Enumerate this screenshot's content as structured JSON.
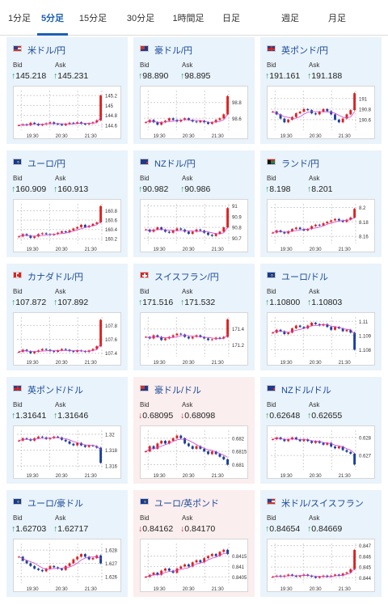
{
  "tabs": [
    {
      "label": "1分足",
      "active": false
    },
    {
      "label": "5分足",
      "active": true
    },
    {
      "label": "15分足",
      "active": false
    },
    {
      "label": "30分足",
      "active": false
    },
    {
      "label": "1時間足",
      "active": false
    },
    {
      "label": "日足",
      "active": false
    },
    {
      "label": "週足",
      "active": false
    },
    {
      "label": "月足",
      "active": false
    }
  ],
  "bid_label": "Bid",
  "ask_label": "Ask",
  "colors": {
    "up": "#1a9a5a",
    "down": "#d93030",
    "candle_up": "#e02020",
    "candle_down": "#1a3fa0",
    "ma": "#d040d0",
    "link": "#1a4a9a",
    "bg_up": "#e9f3fb",
    "bg_down": "#fbeeee"
  },
  "cards": [
    {
      "pair": "米ドル/円",
      "flag": "us",
      "dir": "up",
      "bid": "145.218",
      "ask": "145.231",
      "chart_data": {
        "type": "candlestick",
        "xticks": [
          "19:30",
          "20:30",
          "21:30"
        ],
        "yticks": [
          "144.6",
          "144.8",
          "145",
          "145.2"
        ],
        "ylim": [
          144.5,
          145.3
        ],
        "series": [
          144.6,
          144.62,
          144.6,
          144.65,
          144.63,
          144.6,
          144.62,
          144.64,
          144.66,
          144.63,
          144.62,
          144.6,
          144.63,
          144.65,
          144.64,
          144.66,
          144.63,
          144.62,
          144.64,
          144.66,
          144.7,
          145.2
        ]
      }
    },
    {
      "pair": "豪ドル/円",
      "flag": "au",
      "dir": "up",
      "bid": "98.890",
      "ask": "98.895",
      "chart_data": {
        "type": "candlestick",
        "xticks": [
          "19:30",
          "20:30",
          "21:30"
        ],
        "yticks": [
          "98.6",
          "98.8"
        ],
        "ylim": [
          98.45,
          98.95
        ],
        "series": [
          98.55,
          98.58,
          98.55,
          98.52,
          98.55,
          98.57,
          98.6,
          98.58,
          98.56,
          98.58,
          98.6,
          98.58,
          98.56,
          98.55,
          98.57,
          98.55,
          98.53,
          98.55,
          98.58,
          98.6,
          98.65,
          98.88
        ]
      }
    },
    {
      "pair": "英ポンド/円",
      "flag": "uk",
      "dir": "up",
      "bid": "191.161",
      "ask": "191.188",
      "chart_data": {
        "type": "candlestick",
        "xticks": [
          "19:30",
          "20:30",
          "21:30"
        ],
        "yticks": [
          "190.6",
          "190.8",
          "191"
        ],
        "ylim": [
          190.4,
          191.15
        ],
        "series": [
          190.75,
          190.7,
          190.62,
          190.55,
          190.6,
          190.65,
          190.72,
          190.75,
          190.8,
          190.78,
          190.72,
          190.7,
          190.75,
          190.8,
          190.76,
          190.7,
          190.6,
          190.55,
          190.62,
          190.7,
          190.78,
          191.1
        ]
      }
    },
    {
      "pair": "ユーロ/円",
      "flag": "eu",
      "dir": "up",
      "bid": "160.909",
      "ask": "160.913",
      "chart_data": {
        "type": "candlestick",
        "xticks": [
          "19:30",
          "20:30",
          "21:30"
        ],
        "yticks": [
          "160.2",
          "160.4",
          "160.6",
          "160.8"
        ],
        "ylim": [
          160.1,
          160.95
        ],
        "series": [
          160.25,
          160.3,
          160.27,
          160.22,
          160.25,
          160.3,
          160.32,
          160.3,
          160.28,
          160.3,
          160.33,
          160.36,
          160.34,
          160.38,
          160.42,
          160.45,
          160.5,
          160.45,
          160.48,
          160.52,
          160.55,
          160.9
        ]
      }
    },
    {
      "pair": "NZドル/円",
      "flag": "nz",
      "dir": "up",
      "bid": "90.982",
      "ask": "90.986",
      "chart_data": {
        "type": "candlestick",
        "xticks": [
          "19:30",
          "20:30",
          "21:30"
        ],
        "yticks": [
          "90.7",
          "90.8",
          "90.9",
          "91"
        ],
        "ylim": [
          90.65,
          91.02
        ],
        "series": [
          90.78,
          90.76,
          90.78,
          90.8,
          90.78,
          90.76,
          90.75,
          90.77,
          90.79,
          90.78,
          90.76,
          90.74,
          90.76,
          90.78,
          90.77,
          90.75,
          90.73,
          90.72,
          90.74,
          90.76,
          90.8,
          90.98
        ]
      }
    },
    {
      "pair": "ランド/円",
      "flag": "za",
      "dir": "up",
      "bid": "8.198",
      "ask": "8.201",
      "chart_data": {
        "type": "candlestick",
        "xticks": [
          "19:30",
          "20:30",
          "21:30"
        ],
        "yticks": [
          "8.16",
          "8.18",
          "8.2"
        ],
        "ylim": [
          8.15,
          8.205
        ],
        "series": [
          8.165,
          8.168,
          8.166,
          8.164,
          8.167,
          8.17,
          8.172,
          8.17,
          8.168,
          8.17,
          8.174,
          8.176,
          8.175,
          8.178,
          8.18,
          8.182,
          8.184,
          8.182,
          8.18,
          8.183,
          8.186,
          8.198
        ]
      }
    },
    {
      "pair": "カナダドル/円",
      "flag": "ca",
      "dir": "up",
      "bid": "107.872",
      "ask": "107.892",
      "chart_data": {
        "type": "candlestick",
        "xticks": [
          "19:30",
          "20:30",
          "21:30"
        ],
        "yticks": [
          "107.4",
          "107.6",
          "107.8"
        ],
        "ylim": [
          107.35,
          107.92
        ],
        "series": [
          107.42,
          107.45,
          107.43,
          107.4,
          107.42,
          107.44,
          107.46,
          107.45,
          107.43,
          107.42,
          107.44,
          107.46,
          107.45,
          107.43,
          107.42,
          107.44,
          107.43,
          107.42,
          107.44,
          107.46,
          107.5,
          107.88
        ]
      }
    },
    {
      "pair": "スイスフラン/円",
      "flag": "ch",
      "dir": "up",
      "bid": "171.516",
      "ask": "171.532",
      "chart_data": {
        "type": "candlestick",
        "xticks": [
          "19:30",
          "20:30",
          "21:30"
        ],
        "yticks": [
          "171.2",
          "171.4"
        ],
        "ylim": [
          171.05,
          171.55
        ],
        "series": [
          171.3,
          171.28,
          171.32,
          171.3,
          171.26,
          171.28,
          171.3,
          171.32,
          171.34,
          171.33,
          171.3,
          171.28,
          171.3,
          171.32,
          171.3,
          171.28,
          171.26,
          171.27,
          171.29,
          171.28,
          171.3,
          171.52
        ]
      }
    },
    {
      "pair": "ユーロ/ドル",
      "flag": "eu-us",
      "dir": "up",
      "bid": "1.10800",
      "ask": "1.10803",
      "chart_data": {
        "type": "candlestick",
        "xticks": [
          "19:30",
          "20:30",
          "21:30"
        ],
        "yticks": [
          "1.108",
          "1.109",
          "1.11"
        ],
        "ylim": [
          1.1075,
          1.1103
        ],
        "series": [
          1.1092,
          1.1094,
          1.1093,
          1.1091,
          1.1092,
          1.1095,
          1.1097,
          1.1096,
          1.1095,
          1.1097,
          1.1099,
          1.1098,
          1.1097,
          1.1098,
          1.1096,
          1.1094,
          1.1096,
          1.1095,
          1.1093,
          1.1094,
          1.1092,
          1.108
        ]
      }
    },
    {
      "pair": "英ポンド/ドル",
      "flag": "uk-us",
      "dir": "up",
      "bid": "1.31641",
      "ask": "1.31646",
      "chart_data": {
        "type": "candlestick",
        "xticks": [
          "19:30",
          "20:30",
          "21:30"
        ],
        "yticks": [
          "1.316",
          "1.318",
          "1.32"
        ],
        "ylim": [
          1.3155,
          1.3205
        ],
        "series": [
          1.3192,
          1.3195,
          1.3194,
          1.3192,
          1.3195,
          1.3197,
          1.3196,
          1.3194,
          1.3195,
          1.3197,
          1.3196,
          1.3193,
          1.3191,
          1.3188,
          1.3186,
          1.3189,
          1.3186,
          1.3184,
          1.3186,
          1.3185,
          1.3183,
          1.3164
        ]
      }
    },
    {
      "pair": "豪ドル/ドル",
      "flag": "au-us",
      "dir": "down",
      "bid": "0.68095",
      "ask": "0.68098",
      "chart_data": {
        "type": "candlestick",
        "xticks": [
          "19:30",
          "20:30",
          "21:30"
        ],
        "yticks": [
          "0.681",
          "0.6815",
          "0.682"
        ],
        "ylim": [
          0.6808,
          0.6823
        ],
        "series": [
          0.6815,
          0.6817,
          0.6816,
          0.6818,
          0.6819,
          0.6818,
          0.6819,
          0.682,
          0.6821,
          0.682,
          0.6818,
          0.6817,
          0.6816,
          0.6817,
          0.6816,
          0.6815,
          0.6814,
          0.6815,
          0.6814,
          0.6813,
          0.6812,
          0.681
        ]
      }
    },
    {
      "pair": "NZドル/ドル",
      "flag": "nz-us",
      "dir": "up",
      "bid": "0.62648",
      "ask": "0.62655",
      "chart_data": {
        "type": "candlestick",
        "xticks": [
          "19:30",
          "20:30",
          "21:30"
        ],
        "yticks": [
          "0.627",
          "0.628"
        ],
        "ylim": [
          0.6262,
          0.6284
        ],
        "series": [
          0.6279,
          0.628,
          0.6279,
          0.6278,
          0.6279,
          0.628,
          0.6279,
          0.6278,
          0.6279,
          0.6278,
          0.6277,
          0.6278,
          0.6277,
          0.6276,
          0.6277,
          0.6275,
          0.6274,
          0.6275,
          0.6273,
          0.6272,
          0.6271,
          0.6265
        ]
      }
    },
    {
      "pair": "ユーロ/豪ドル",
      "flag": "eu-au",
      "dir": "up",
      "bid": "1.62703",
      "ask": "1.62717",
      "chart_data": {
        "type": "candlestick",
        "xticks": [
          "19:30",
          "20:30",
          "21:30"
        ],
        "yticks": [
          "1.626",
          "1.627",
          "1.628"
        ],
        "ylim": [
          1.6255,
          1.6285
        ],
        "series": [
          1.6275,
          1.6272,
          1.627,
          1.6268,
          1.6266,
          1.6265,
          1.6264,
          1.6266,
          1.6268,
          1.6267,
          1.6266,
          1.6265,
          1.6268,
          1.627,
          1.6273,
          1.6275,
          1.6277,
          1.6275,
          1.6273,
          1.6274,
          1.6276,
          1.627
        ]
      }
    },
    {
      "pair": "ユーロ/英ポンド",
      "flag": "eu-uk",
      "dir": "down",
      "bid": "0.84162",
      "ask": "0.84170",
      "chart_data": {
        "type": "candlestick",
        "xticks": [
          "19:30",
          "20:30",
          "21:30"
        ],
        "yticks": [
          "0.8405",
          "0.841",
          "0.8415"
        ],
        "ylim": [
          0.8402,
          0.8421
        ],
        "series": [
          0.8405,
          0.8406,
          0.8407,
          0.8406,
          0.8408,
          0.8409,
          0.8408,
          0.8407,
          0.8409,
          0.841,
          0.8411,
          0.841,
          0.8412,
          0.8413,
          0.8412,
          0.8414,
          0.8415,
          0.8416,
          0.8415,
          0.8417,
          0.8418,
          0.8416
        ]
      }
    },
    {
      "pair": "米ドル/スイスフラン",
      "flag": "us-ch",
      "dir": "up",
      "bid": "0.84654",
      "ask": "0.84669",
      "chart_data": {
        "type": "candlestick",
        "xticks": [
          "19:30",
          "20:30",
          "21:30"
        ],
        "yticks": [
          "0.844",
          "0.845",
          "0.846",
          "0.847"
        ],
        "ylim": [
          0.8435,
          0.8472
        ],
        "series": [
          0.8441,
          0.8442,
          0.8441,
          0.8442,
          0.8443,
          0.8442,
          0.8441,
          0.8442,
          0.8443,
          0.8442,
          0.8441,
          0.844,
          0.8441,
          0.8442,
          0.8441,
          0.8442,
          0.8443,
          0.8442,
          0.8444,
          0.8445,
          0.8448,
          0.8466
        ]
      }
    }
  ]
}
